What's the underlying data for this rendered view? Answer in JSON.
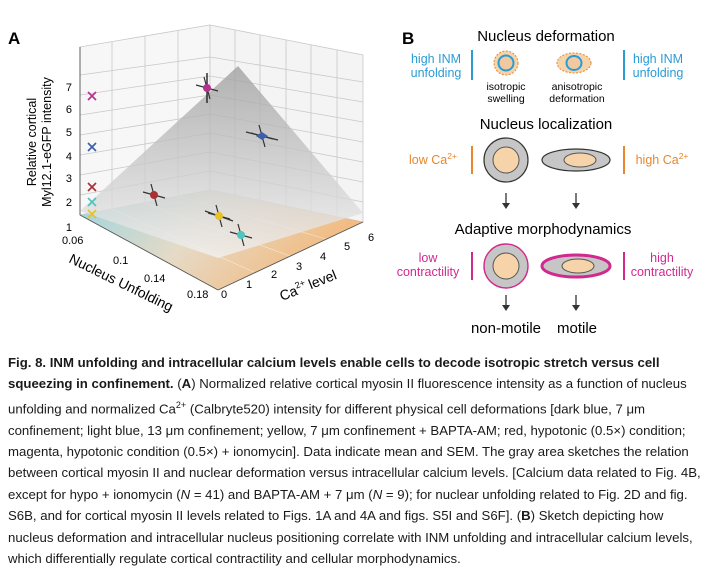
{
  "panel_a": {
    "label": "A",
    "y_title_line1": "Relative cortical",
    "y_title_line2": "Myl12.1-eGFP intensity",
    "y_ticks": [
      "1",
      "2",
      "3",
      "4",
      "5",
      "6",
      "7"
    ],
    "x_title": "Nucleus Unfolding",
    "x_ticks": [
      "0.06",
      "0.1",
      "0.14",
      "0.18"
    ],
    "z_title": "level",
    "z_title_prefix": "Ca",
    "z_title_sup": "2+",
    "z_ticks": [
      "0",
      "1",
      "2",
      "3",
      "4",
      "5",
      "6"
    ],
    "colors": {
      "dark_blue": "#3d5fa8",
      "light_blue": "#4ec6c0",
      "yellow": "#e5c12a",
      "red": "#a83232",
      "magenta": "#b6318f",
      "surface": "#c7c7c7",
      "floor_teal": "#8fd0dc",
      "floor_orange": "#f1b16e"
    }
  },
  "chart_data": {
    "type": "scatter",
    "dimensions": 3,
    "x_axis": "Nucleus Unfolding",
    "z_axis": "Ca2+ level",
    "y_axis": "Relative cortical Myl12.1-eGFP intensity",
    "xlim": [
      0.06,
      0.18
    ],
    "zlim": [
      0,
      6
    ],
    "ylim": [
      1,
      7
    ],
    "series": [
      {
        "condition": "dark blue",
        "color": "#3d5fa8",
        "y": 4.4
      },
      {
        "condition": "light blue",
        "color": "#4ec6c0",
        "y": 1.9
      },
      {
        "condition": "yellow",
        "color": "#e5c12a",
        "y": 1.4
      },
      {
        "condition": "red",
        "color": "#a83232",
        "y": 2.6
      },
      {
        "condition": "magenta",
        "color": "#b6318f",
        "y": 6.8
      }
    ]
  },
  "panel_b": {
    "label": "B",
    "title_deformation": "Nucleus deformation",
    "left_label_1": "high INM",
    "left_label_2": "unfolding",
    "right_label_1": "high INM",
    "right_label_2": "unfolding",
    "iso_1": "isotropic",
    "iso_2": "swelling",
    "aniso_1": "anisotropic",
    "aniso_2": "deformation",
    "title_localization": "Nucleus localization",
    "low_ca_prefix": "low Ca",
    "high_ca_prefix": "high Ca",
    "ca_sup": "2+",
    "title_adaptive": "Adaptive morphodynamics",
    "low_contr_1": "low",
    "low_contr_2": "contractility",
    "high_contr_1": "high",
    "high_contr_2": "contractility",
    "nonmotile": "non-motile",
    "motile": "motile",
    "colors": {
      "blue_label": "#2b9bd4",
      "orange_label": "#e8872c",
      "magenta_label": "#d2298f",
      "nucleus_fill": "#f6d3a8",
      "cell_fill": "#c6c6c6",
      "teal_nucleus": "#57c4bf"
    }
  },
  "caption": {
    "fig_bold": "Fig. 8. INM unfolding and intracellular calcium levels enable cells to decode isotropic stretch versus cell squeezing in confinement.",
    "part_a_label": "A",
    "part_a_pre": "Normalized relative cortical myosin II fluorescence intensity as a function of nucleus unfolding and normalized Ca",
    "part_a_sup": "2+",
    "part_a_post": "(Calbryte520) intensity for different physical cell deformations [dark blue, 7 μm confinement; light blue, 13 μm confinement; yellow, 7 μm confinement + BAPTA-AM; red, hypotonic (0.5×) condition; magenta, hypotonic condition (0.5×) + ionomycin]. Data indicate mean and SEM. The gray area sketches the relation between cortical myosin II and nuclear deformation versus intracellular calcium levels. [Calcium data related to Fig. 4B, except for hypo + ionomycin (",
    "n1_var": "N",
    "n1_val": " = 41) and BAPTA-AM + 7 μm (",
    "n2_var": "N",
    "n2_val": " = 9); for nuclear unfolding related to Fig. 2D and fig. S6B, and for cortical myosin II levels related to Figs. 1A and 4A and figs. S5I and S6F]. (",
    "part_b_label": "B",
    "part_b_text": ") Sketch depicting how nucleus deformation and intracellular nucleus positioning correlate with INM unfolding and intracellular calcium levels, which differentially regulate cortical contractility and cellular morphodynamics."
  }
}
